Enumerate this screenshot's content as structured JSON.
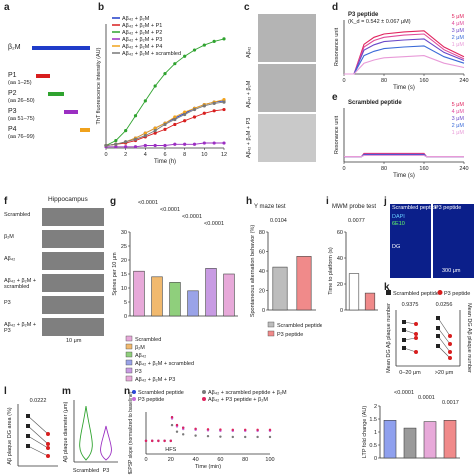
{
  "panels": {
    "a": {
      "label": "a",
      "bars": [
        {
          "name": "β₂M",
          "color": "#1f3cc9"
        },
        {
          "name": "P1",
          "range": "(aa 1–25)",
          "color": "#d81e1e"
        },
        {
          "name": "P2",
          "range": "(aa 26–50)",
          "color": "#2fa32f"
        },
        {
          "name": "P3",
          "range": "(aa 51–75)",
          "color": "#9b2fc2"
        },
        {
          "name": "P4",
          "range": "(aa 76–99)",
          "color": "#f0a21c"
        }
      ]
    },
    "b": {
      "label": "b",
      "chart_data": {
        "type": "line",
        "ylabel": "ThT fluorescence intensity (AU)",
        "xlabel": "Time (h)",
        "x_ticks": [
          0,
          2,
          4,
          6,
          8,
          10,
          12
        ],
        "xlim": [
          0,
          12
        ],
        "series": [
          {
            "name": "Aβ₄₂ + β₂M",
            "color": "#1f3cc9",
            "x": [
              0,
              1,
              2,
              3,
              4,
              5,
              6,
              7,
              8,
              9,
              10,
              11,
              12
            ],
            "y": [
              0.02,
              0.03,
              0.05,
              0.08,
              0.12,
              0.16,
              0.2,
              0.24,
              0.28,
              0.32,
              0.35,
              0.37,
              0.38
            ]
          },
          {
            "name": "Aβ₄₂ + β₂M + P1",
            "color": "#d81e1e",
            "x": [
              0,
              1,
              2,
              3,
              4,
              5,
              6,
              7,
              8,
              9,
              10,
              11,
              12
            ],
            "y": [
              0.02,
              0.03,
              0.04,
              0.06,
              0.09,
              0.12,
              0.15,
              0.19,
              0.22,
              0.25,
              0.28,
              0.3,
              0.31
            ]
          },
          {
            "name": "Aβ₄₂ + β₂M + P2",
            "color": "#2fa32f",
            "x": [
              0,
              1,
              2,
              3,
              4,
              5,
              6,
              7,
              8,
              9,
              10,
              11,
              12
            ],
            "y": [
              0.02,
              0.06,
              0.14,
              0.26,
              0.38,
              0.5,
              0.6,
              0.68,
              0.74,
              0.79,
              0.83,
              0.86,
              0.88
            ]
          },
          {
            "name": "Aβ₄₂ + β₂M + P3",
            "color": "#9b2fc2",
            "x": [
              0,
              1,
              2,
              3,
              4,
              5,
              6,
              7,
              8,
              9,
              10,
              11,
              12
            ],
            "y": [
              0.01,
              0.01,
              0.01,
              0.01,
              0.02,
              0.02,
              0.02,
              0.03,
              0.03,
              0.03,
              0.04,
              0.04,
              0.04
            ]
          },
          {
            "name": "Aβ₄₂ + β₂M + P4",
            "color": "#f0a21c",
            "x": [
              0,
              1,
              2,
              3,
              4,
              5,
              6,
              7,
              8,
              9,
              10,
              11,
              12
            ],
            "y": [
              0.02,
              0.03,
              0.05,
              0.08,
              0.12,
              0.16,
              0.2,
              0.25,
              0.29,
              0.32,
              0.35,
              0.37,
              0.39
            ]
          },
          {
            "name": "Aβ₄₂ + β₂M + scrambled",
            "color": "#777777",
            "x": [
              0,
              1,
              2,
              3,
              4,
              5,
              6,
              7,
              8,
              9,
              10,
              11,
              12
            ],
            "y": [
              0.02,
              0.03,
              0.05,
              0.07,
              0.1,
              0.14,
              0.19,
              0.23,
              0.27,
              0.31,
              0.34,
              0.36,
              0.37
            ]
          }
        ]
      }
    },
    "c": {
      "label": "c",
      "rows": [
        "Aβ₄₂",
        "Aβ₄₂ + β₂M",
        "Aβ₄₂ + β₂M + P3"
      ]
    },
    "d": {
      "label": "d",
      "chart_data": {
        "type": "line",
        "title": "P3 peptide",
        "subtitle": "(K_d = 0.542 ± 0.067 μM)",
        "ylabel": "Resonance unit",
        "xlabel": "Time (s)",
        "x_ticks": [
          0,
          80,
          160,
          240
        ],
        "xlim": [
          0,
          240
        ],
        "series": [
          {
            "name": "5 μM",
            "color": "#e0245e",
            "x": [
              0,
              20,
              40,
              60,
              80,
              120,
              160,
              200,
              240
            ],
            "y": [
              0,
              0,
              0.55,
              0.68,
              0.74,
              0.78,
              0.8,
              0.5,
              0.32
            ]
          },
          {
            "name": "4 μM",
            "color": "#e04a9a",
            "x": [
              0,
              20,
              40,
              60,
              80,
              120,
              160,
              200,
              240
            ],
            "y": [
              0,
              0,
              0.5,
              0.62,
              0.68,
              0.72,
              0.74,
              0.45,
              0.28
            ]
          },
          {
            "name": "3 μM",
            "color": "#6a48c8",
            "x": [
              0,
              20,
              40,
              60,
              80,
              120,
              160,
              200,
              240
            ],
            "y": [
              0,
              0,
              0.44,
              0.54,
              0.6,
              0.63,
              0.65,
              0.4,
              0.25
            ]
          },
          {
            "name": "2 μM",
            "color": "#3a6ad8",
            "x": [
              0,
              20,
              40,
              60,
              80,
              120,
              160,
              200,
              240
            ],
            "y": [
              0,
              0,
              0.34,
              0.42,
              0.47,
              0.5,
              0.52,
              0.32,
              0.2
            ]
          },
          {
            "name": "1 μM",
            "color": "#e89ad8",
            "x": [
              0,
              20,
              40,
              60,
              80,
              120,
              160,
              200,
              240
            ],
            "y": [
              0,
              0,
              0.2,
              0.26,
              0.3,
              0.32,
              0.34,
              0.2,
              0.12
            ]
          }
        ]
      }
    },
    "e": {
      "label": "e",
      "chart_data": {
        "type": "line",
        "title": "Scrambled peptide",
        "ylabel": "Resonance unit",
        "xlabel": "Time (s)",
        "x_ticks": [
          0,
          80,
          160,
          240
        ],
        "xlim": [
          0,
          240
        ],
        "series": [
          {
            "name": "5 μM",
            "color": "#e0245e",
            "x": [
              0,
              35,
              40,
              160,
              165,
              240
            ],
            "y": [
              0.1,
              0.1,
              0.16,
              0.16,
              0.1,
              0.1
            ]
          },
          {
            "name": "4 μM",
            "color": "#e04a9a",
            "x": [
              0,
              35,
              40,
              160,
              165,
              240
            ],
            "y": [
              0.1,
              0.1,
              0.15,
              0.15,
              0.1,
              0.1
            ]
          },
          {
            "name": "3 μM",
            "color": "#6a48c8",
            "x": [
              0,
              35,
              40,
              160,
              165,
              240
            ],
            "y": [
              0.1,
              0.1,
              0.14,
              0.14,
              0.1,
              0.1
            ]
          },
          {
            "name": "2 μM",
            "color": "#3a6ad8",
            "x": [
              0,
              35,
              40,
              160,
              165,
              240
            ],
            "y": [
              0.1,
              0.1,
              0.13,
              0.13,
              0.1,
              0.1
            ]
          },
          {
            "name": "1 μM",
            "color": "#e89ad8",
            "x": [
              0,
              35,
              40,
              160,
              165,
              240
            ],
            "y": [
              0.1,
              0.1,
              0.12,
              0.12,
              0.1,
              0.1
            ]
          }
        ]
      }
    },
    "f": {
      "label": "f",
      "title": "Hippocampus",
      "rows": [
        "Scrambled",
        "β₂M",
        "Aβ₄₂",
        "Aβ₄₂ + β₂M + scrambled",
        "P3",
        "Aβ₄₂ + β₂M + P3"
      ],
      "scale": "10 μm"
    },
    "g": {
      "label": "g",
      "chart_data": {
        "type": "bar",
        "ylabel": "Spines per 10 μm",
        "y_ticks": [
          0,
          5,
          10,
          15,
          20,
          25,
          30
        ],
        "ylim": [
          0,
          30
        ],
        "categories": [
          "Scrambled",
          "β₂M",
          "Aβ₄₂",
          "Aβ₄₂ + β₂M + scrambled",
          "P3",
          "Aβ₄₂ + β₂M + P3"
        ],
        "values": [
          16,
          14,
          12,
          9,
          17,
          15
        ],
        "colors": [
          "#e7a9d9",
          "#f1b96e",
          "#8fcf7c",
          "#9aa3e8",
          "#c89be3",
          "#e7a9d9"
        ],
        "pvalues": [
          "<0.0001",
          "<0.0001",
          "<0.0001",
          "<0.0001"
        ]
      }
    },
    "h": {
      "label": "h",
      "chart_data": {
        "type": "bar",
        "title": "Y maze test",
        "ylabel": "Spontaneous alternation behavior (%)",
        "y_ticks": [
          0,
          20,
          40,
          60,
          80
        ],
        "ylim": [
          0,
          80
        ],
        "categories": [
          "Scrambled peptide",
          "P3 peptide"
        ],
        "values": [
          44,
          55
        ],
        "colors": [
          "#bdbdbd",
          "#f08a8a"
        ],
        "pvalues": [
          "0.0104"
        ]
      }
    },
    "i": {
      "label": "i",
      "chart_data": {
        "type": "bar",
        "title": "MWM probe test",
        "ylabel": "Time to platform (s)",
        "y_ticks": [
          0,
          20,
          40,
          60
        ],
        "ylim": [
          0,
          60
        ],
        "categories": [
          "Scrambled peptide",
          "P3 peptide"
        ],
        "values": [
          28,
          13
        ],
        "colors": [
          "#ffffff",
          "#f08a8a"
        ],
        "pvalues": [
          "0.0077"
        ]
      }
    },
    "j": {
      "label": "j",
      "headers": [
        "Scrambled peptide",
        "P3 peptide"
      ],
      "stains": [
        "DAPI",
        "6E10"
      ],
      "region": "DG",
      "scale": "300 μm"
    },
    "k": {
      "label": "k",
      "chart_data": {
        "type": "scatter",
        "legend": [
          "Scrambled peptide",
          "P3 peptide"
        ],
        "ylabel_left": "Mean DG Aβ plaque number",
        "ylabel_right": "Mean DG Aβ plaque number",
        "categories": [
          "0–20 μm",
          ">20 μm"
        ],
        "pvalues": [
          "0.9375",
          "0.0256"
        ]
      }
    },
    "l": {
      "label": "l",
      "chart_data": {
        "type": "scatter",
        "ylabel": "Aβ plaque DG area (%)",
        "pvalues": [
          "0.0222"
        ]
      }
    },
    "m": {
      "label": "m",
      "chart_data": {
        "type": "bar",
        "ylabel": "Aβ plaque diameter (μm)",
        "categories": [
          "Scrambled",
          "P3"
        ],
        "colors": [
          "#2fa32f",
          "#9b2fc2"
        ]
      }
    },
    "n": {
      "label": "n",
      "legend": [
        "Scrambled peptide",
        "Aβ₄₂ + scrambled peptide + β₂M",
        "P3 peptide",
        "Aβ₄₂ + P3 peptide + β₂M"
      ],
      "legend_colors": [
        "#2b48d9",
        "#7a7a7a",
        "#c86bd8",
        "#e0245e"
      ],
      "chart_data": {
        "type": "scatter",
        "ylabel": "fEPSP slope (normalized to baseline)",
        "xlabel": "Time (min)",
        "x_ticks": [
          0,
          20,
          40,
          60,
          80,
          100
        ],
        "marker": "HFS",
        "series": [
          {
            "name": "Scrambled peptide",
            "color": "#2b48d9",
            "x": [
              0,
              5,
              10,
              15,
              20,
              21,
              25,
              30,
              40,
              50,
              60,
              70,
              80,
              90,
              100
            ],
            "y": [
              1,
              1,
              1,
              1,
              1,
              1.9,
              1.6,
              1.5,
              1.45,
              1.42,
              1.4,
              1.4,
              1.4,
              1.4,
              1.4
            ]
          },
          {
            "name": "Aβ₄₂ + scrambled peptide + β₂M",
            "color": "#7a7a7a",
            "x": [
              0,
              5,
              10,
              15,
              20,
              21,
              25,
              30,
              40,
              50,
              60,
              70,
              80,
              90,
              100
            ],
            "y": [
              1,
              1,
              1,
              1,
              1,
              1.6,
              1.35,
              1.25,
              1.2,
              1.18,
              1.16,
              1.15,
              1.15,
              1.15,
              1.15
            ]
          },
          {
            "name": "P3 peptide",
            "color": "#c86bd8",
            "x": [
              0,
              5,
              10,
              15,
              20,
              21,
              25,
              30,
              40,
              50,
              60,
              70,
              80,
              90,
              100
            ],
            "y": [
              1,
              1,
              1,
              1,
              1,
              1.85,
              1.55,
              1.45,
              1.42,
              1.4,
              1.38,
              1.38,
              1.38,
              1.38,
              1.38
            ]
          },
          {
            "name": "Aβ₄₂ + P3 peptide + β₂M",
            "color": "#e0245e",
            "x": [
              0,
              5,
              10,
              15,
              20,
              21,
              25,
              30,
              40,
              50,
              60,
              70,
              80,
              90,
              100
            ],
            "y": [
              1,
              1,
              1,
              1,
              1,
              1.9,
              1.6,
              1.5,
              1.46,
              1.44,
              1.43,
              1.42,
              1.42,
              1.42,
              1.42
            ]
          }
        ]
      }
    },
    "n2": {
      "chart_data": {
        "type": "bar",
        "ylabel": "LTP fold change (AU)",
        "y_ticks": [
          0,
          0.5,
          1.0,
          1.5,
          2.0
        ],
        "ylim": [
          0,
          2
        ],
        "categories": [
          "Scrambled peptide",
          "Aβ₄₂ + scrambled peptide + β₂M",
          "P3 peptide",
          "Aβ₄₂ + P3 peptide + β₂M"
        ],
        "values": [
          1.45,
          1.15,
          1.4,
          1.45
        ],
        "colors": [
          "#8fa0ee",
          "#9a9a9a",
          "#e7a9d9",
          "#f08a8a"
        ],
        "pvalues": [
          "<0.0001",
          "0.0001",
          "0.0017"
        ]
      }
    }
  }
}
